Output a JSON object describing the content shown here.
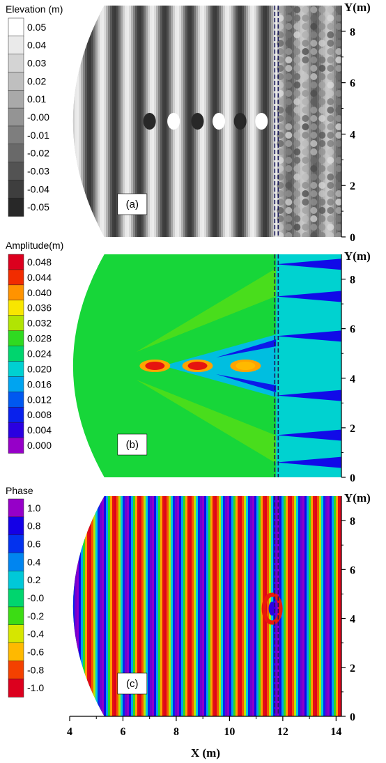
{
  "chart_data": {
    "type": "heatmap",
    "x_axis": {
      "label": "X (m)",
      "ticks": [
        4,
        6,
        8,
        10,
        12,
        14
      ],
      "range": [
        4,
        14.2
      ]
    },
    "y_axis": {
      "label": "Y(m)",
      "ticks": [
        0,
        2,
        4,
        6,
        8
      ],
      "range": [
        0,
        9
      ]
    },
    "breakwater_x": 11.75,
    "panels": [
      {
        "id": "a",
        "tag": "(a)",
        "colorbar_title": "Elevation (m)",
        "colormap": "gray",
        "levels": [
          "0.05",
          "0.04",
          "0.03",
          "0.02",
          "0.01",
          "-0.00",
          "-0.01",
          "-0.02",
          "-0.03",
          "-0.04",
          "-0.05"
        ]
      },
      {
        "id": "b",
        "tag": "(b)",
        "colorbar_title": "Amplitude(m)",
        "colormap": "rainbow",
        "levels": [
          "0.048",
          "0.044",
          "0.040",
          "0.036",
          "0.032",
          "0.028",
          "0.024",
          "0.020",
          "0.016",
          "0.012",
          "0.008",
          "0.004",
          "0.000"
        ]
      },
      {
        "id": "c",
        "tag": "(c)",
        "colorbar_title": "Phase",
        "colormap": "rainbow-reversed",
        "levels": [
          "1.0",
          "0.8",
          "0.6",
          "0.4",
          "0.2",
          "-0.0",
          "-0.2",
          "-0.4",
          "-0.6",
          "-0.8",
          "-1.0"
        ]
      }
    ]
  }
}
